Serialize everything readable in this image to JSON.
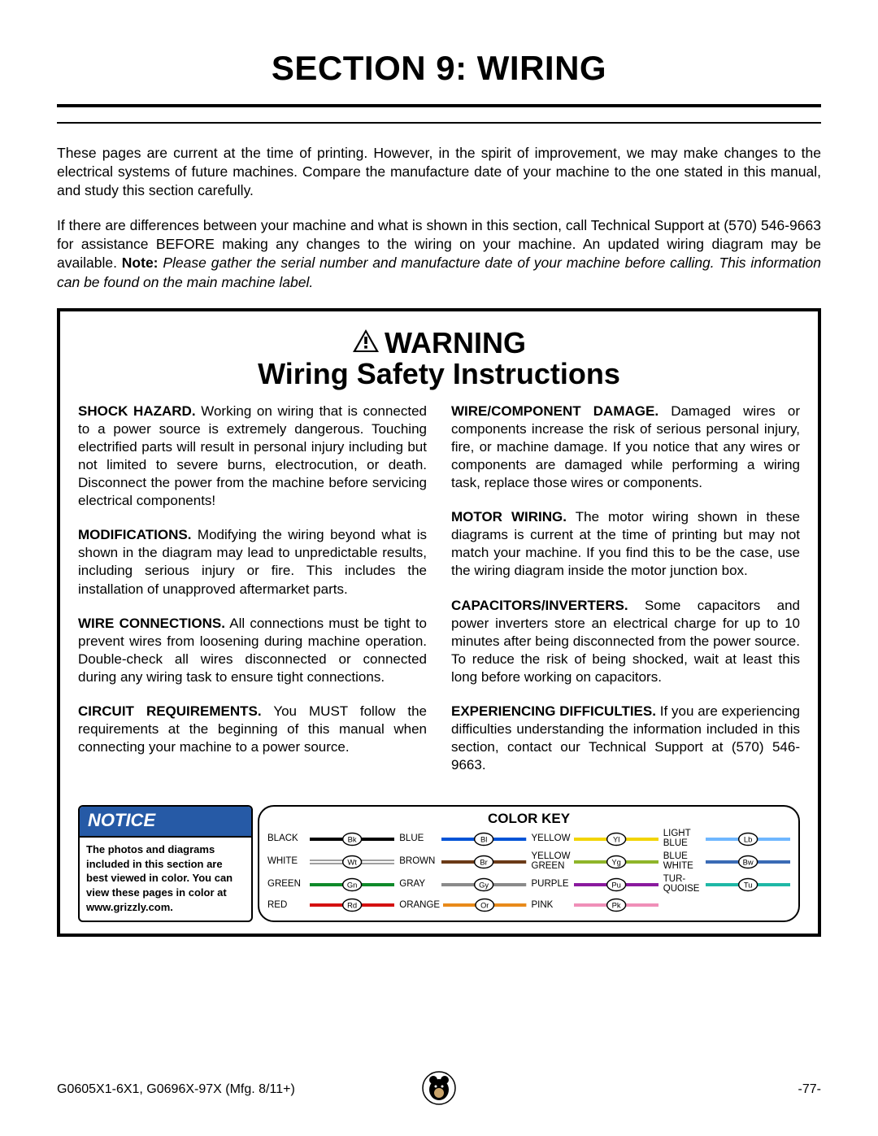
{
  "title": "SECTION 9: WIRING",
  "intro1": "These pages are current at the time of printing. However, in the spirit of improvement, we may make changes to the electrical systems of future machines. Compare the manufacture date of your machine to the one stated in this manual, and study this section carefully.",
  "intro2a": "If there are differences between your machine and what is shown in this section, call Technical Support at (570) 546-9663 for assistance BEFORE making any changes to the wiring on your machine. An updated wiring diagram may be available. ",
  "intro2_note": "Note:",
  "intro2b": " Please gather the serial number and manufacture date of your machine before calling. This information can be found on the main machine label.",
  "warning_label": "WARNING",
  "warning_sub": "Wiring Safety Instructions",
  "col_left": [
    {
      "lead": "SHOCK HAZARD.",
      "text": " Working on wiring that is connected to a power source is extremely dangerous. Touching electrified parts will result in personal injury including but not limited to severe burns, electrocution, or death. Disconnect the power from the machine before servicing electrical components!"
    },
    {
      "lead": "MODIFICATIONS.",
      "text": " Modifying the wiring beyond what is shown in the diagram may lead to unpredictable results, including serious injury or fire. This includes the installation of unapproved aftermarket parts."
    },
    {
      "lead": "WIRE CONNECTIONS.",
      "text": " All connections must be tight to prevent wires from loosening during machine operation. Double-check all wires disconnected or connected during any wiring task to ensure tight connections."
    },
    {
      "lead": "CIRCUIT REQUIREMENTS.",
      "text": " You MUST follow the requirements at the beginning of this manual when connecting your machine to a power source."
    }
  ],
  "col_right": [
    {
      "lead": "WIRE/COMPONENT DAMAGE.",
      "text": " Damaged wires or components increase the risk of serious personal injury, fire, or machine damage. If you notice that any wires or components are damaged while performing a wiring task, replace those wires or components."
    },
    {
      "lead": "MOTOR WIRING.",
      "text": " The motor wiring shown in these diagrams is current at the time of printing but may not match your machine. If you find this to be the case, use the wiring diagram inside the motor junction box."
    },
    {
      "lead": "CAPACITORS/INVERTERS.",
      "text": " Some capacitors and power inverters store an electrical charge for up to 10 minutes after being disconnected from the power source. To reduce the risk of being shocked, wait at least this long before working on capacitors."
    },
    {
      "lead": "EXPERIENCING DIFFICULTIES.",
      "text": " If you are experiencing difficulties understanding the information included in this section, contact our Technical Support at (570) 546-9663."
    }
  ],
  "notice_label": "NOTICE",
  "notice_text": "The photos and diagrams included in this section are best viewed in color. You can view these pages in color at www.grizzly.com.",
  "colorkey_title": "COLOR KEY",
  "colorkey": [
    {
      "label": "BLACK",
      "code": "Bk",
      "color": "#000000",
      "outline": false
    },
    {
      "label": "BLUE",
      "code": "Bl",
      "color": "#0053d6",
      "outline": false
    },
    {
      "label": "YELLOW",
      "code": "Yl",
      "color": "#f2d400",
      "outline": false
    },
    {
      "label": "LIGHT\nBLUE",
      "code": "Lb",
      "color": "#6fb7ff",
      "outline": false
    },
    {
      "label": "WHITE",
      "code": "Wt",
      "color": "#ffffff",
      "outline": true
    },
    {
      "label": "BROWN",
      "code": "Br",
      "color": "#6b3a17",
      "outline": false
    },
    {
      "label": "YELLOW\nGREEN",
      "code": "Yg",
      "color": "#8fb52a",
      "outline": false
    },
    {
      "label": "BLUE\nWHITE",
      "code": "Bw",
      "color": "#3a6bb5",
      "outline": false
    },
    {
      "label": "GREEN",
      "code": "Gn",
      "color": "#0f8a2a",
      "outline": false
    },
    {
      "label": "GRAY",
      "code": "Gy",
      "color": "#8a8a8a",
      "outline": false
    },
    {
      "label": "PURPLE",
      "code": "Pu",
      "color": "#8a1a9e",
      "outline": false
    },
    {
      "label": "TUR-\nQUOISE",
      "code": "Tu",
      "color": "#1fb8a6",
      "outline": false
    },
    {
      "label": "RED",
      "code": "Rd",
      "color": "#d41111",
      "outline": false
    },
    {
      "label": "ORANGE",
      "code": "Or",
      "color": "#e88a1a",
      "outline": false
    },
    {
      "label": "PINK",
      "code": "Pk",
      "color": "#f08fb8",
      "outline": false
    }
  ],
  "footer_left": "G0605X1-6X1, G0696X-97X (Mfg. 8/11+)",
  "footer_right": "-77-"
}
